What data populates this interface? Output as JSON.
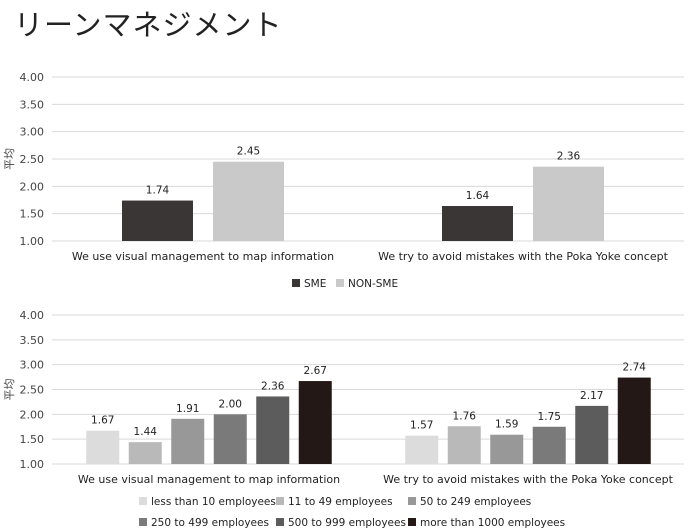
{
  "title": "リーンマネジメント",
  "colors": {
    "sme": "#3a3636",
    "non_sme": "#c9c9c9",
    "sizes": [
      "#dcdcdc",
      "#b9b9b9",
      "#989898",
      "#7a7a7a",
      "#5c5c5c",
      "#231815"
    ],
    "grid": "#d9d9d9"
  },
  "chart_data": [
    {
      "type": "bar",
      "ylabel": "平均",
      "ylim": [
        1.0,
        4.0
      ],
      "yticks": [
        "1.00",
        "1.50",
        "2.00",
        "2.50",
        "3.00",
        "3.50",
        "4.00"
      ],
      "categories": [
        "We use visual management to map information",
        "We try to avoid mistakes with the Poka Yoke concept"
      ],
      "series": [
        {
          "name": "SME",
          "values": [
            1.74,
            1.64
          ],
          "labels": [
            "1.74",
            "1.64"
          ]
        },
        {
          "name": "NON-SME",
          "values": [
            2.45,
            2.36
          ],
          "labels": [
            "2.45",
            "2.36"
          ]
        }
      ],
      "grid": true,
      "legend": "bottom"
    },
    {
      "type": "bar",
      "ylabel": "平均",
      "ylim": [
        1.0,
        4.0
      ],
      "yticks": [
        "1.00",
        "1.50",
        "2.00",
        "2.50",
        "3.00",
        "3.50",
        "4.00"
      ],
      "categories": [
        "We use visual management to map information",
        "We try to avoid mistakes with the Poka Yoke concept"
      ],
      "series": [
        {
          "name": "less than 10 employees",
          "values": [
            1.67,
            1.57
          ],
          "labels": [
            "1.67",
            "1.57"
          ]
        },
        {
          "name": "11 to 49 employees",
          "values": [
            1.44,
            1.76
          ],
          "labels": [
            "1.44",
            "1.76"
          ]
        },
        {
          "name": "50 to 249 employees",
          "values": [
            1.91,
            1.59
          ],
          "labels": [
            "1.91",
            "1.59"
          ]
        },
        {
          "name": "250 to 499 employees",
          "values": [
            2.0,
            1.75
          ],
          "labels": [
            "2.00",
            "1.75"
          ]
        },
        {
          "name": "500 to 999 employees",
          "values": [
            2.36,
            2.17
          ],
          "labels": [
            "2.36",
            "2.17"
          ]
        },
        {
          "name": "more than 1000 employees",
          "values": [
            2.67,
            2.74
          ],
          "labels": [
            "2.67",
            "2.74"
          ]
        }
      ],
      "grid": true,
      "legend": "bottom"
    }
  ]
}
